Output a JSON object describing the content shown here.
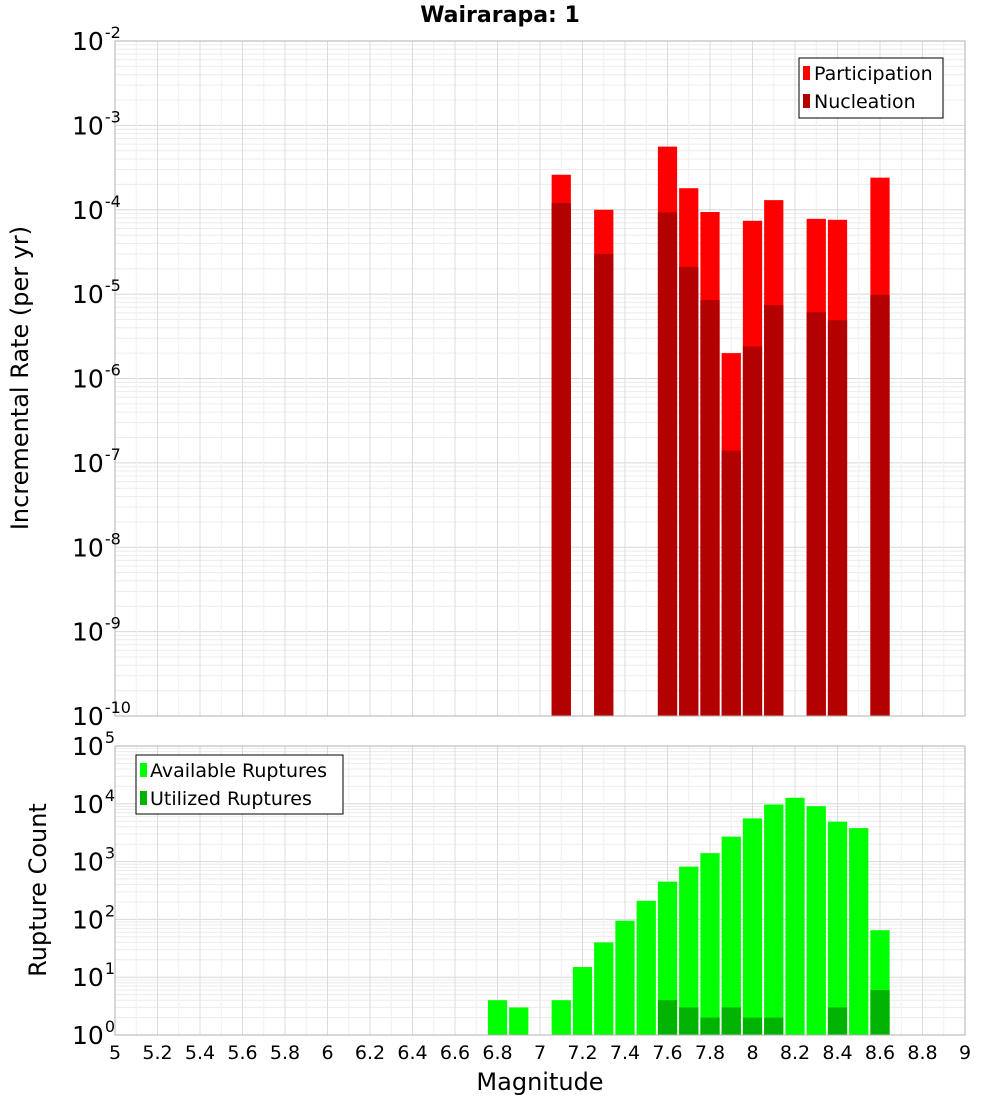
{
  "title": "Wairarapa: 1",
  "chart_data": [
    {
      "type": "bar",
      "ylabel": "Incremental Rate (per yr)",
      "xlabel": "",
      "yscale": "log",
      "ylim_exponents": [
        -10,
        -2
      ],
      "xlim": [
        5,
        9
      ],
      "bin_width": 0.1,
      "grid": true,
      "legend_placement": "top-right",
      "x": [
        7.1,
        7.3,
        7.6,
        7.7,
        7.8,
        7.9,
        8.0,
        8.1,
        8.3,
        8.4,
        8.6
      ],
      "series": [
        {
          "name": "Participation",
          "color": "#ff0000",
          "values": [
            0.00026,
            0.0001,
            0.00056,
            0.00018,
            9.4e-05,
            2e-06,
            7.4e-05,
            0.00013,
            7.8e-05,
            7.6e-05,
            0.00024
          ]
        },
        {
          "name": "Nucleation",
          "color": "#b30000",
          "values": [
            0.00012,
            3e-05,
            9.3e-05,
            2.1e-05,
            8.5e-06,
            1.4e-07,
            2.4e-06,
            7.4e-06,
            6.1e-06,
            4.9e-06,
            9.8e-06
          ]
        }
      ],
      "ytick_labels": [
        {
          "base": "10",
          "exp": "-10"
        },
        {
          "base": "10",
          "exp": "-9"
        },
        {
          "base": "10",
          "exp": "-8"
        },
        {
          "base": "10",
          "exp": "-7"
        },
        {
          "base": "10",
          "exp": "-6"
        },
        {
          "base": "10",
          "exp": "-5"
        },
        {
          "base": "10",
          "exp": "-4"
        },
        {
          "base": "10",
          "exp": "-3"
        },
        {
          "base": "10",
          "exp": "-2"
        }
      ]
    },
    {
      "type": "bar",
      "ylabel": "Rupture Count",
      "xlabel": "Magnitude",
      "yscale": "log",
      "ylim_exponents": [
        0,
        5
      ],
      "xlim": [
        5,
        9
      ],
      "bin_width": 0.1,
      "grid": true,
      "legend_placement": "top-left",
      "x": [
        6.8,
        6.9,
        7.1,
        7.2,
        7.3,
        7.4,
        7.5,
        7.6,
        7.7,
        7.8,
        7.9,
        8.0,
        8.1,
        8.2,
        8.3,
        8.4,
        8.5,
        8.6
      ],
      "series": [
        {
          "name": "Available Ruptures",
          "color": "#00ff00",
          "values": [
            4,
            3,
            4,
            15,
            40,
            95,
            210,
            450,
            820,
            1400,
            2700,
            5600,
            9700,
            12700,
            9100,
            4900,
            3800,
            65
          ]
        },
        {
          "name": "Utilized Ruptures",
          "color": "#00b300",
          "values": [
            0,
            0,
            1,
            0,
            1,
            0,
            0,
            4,
            3,
            2,
            3,
            2,
            2,
            0,
            1,
            3,
            0,
            6
          ]
        }
      ],
      "ytick_labels": [
        {
          "base": "10",
          "exp": "0"
        },
        {
          "base": "10",
          "exp": "1"
        },
        {
          "base": "10",
          "exp": "2"
        },
        {
          "base": "10",
          "exp": "3"
        },
        {
          "base": "10",
          "exp": "4"
        },
        {
          "base": "10",
          "exp": "5"
        }
      ],
      "xtick_labels": [
        "5",
        "5.2",
        "5.4",
        "5.6",
        "5.8",
        "6",
        "6.2",
        "6.4",
        "6.6",
        "6.8",
        "7",
        "7.2",
        "7.4",
        "7.6",
        "7.8",
        "8",
        "8.2",
        "8.4",
        "8.6",
        "8.8",
        "9"
      ]
    }
  ]
}
